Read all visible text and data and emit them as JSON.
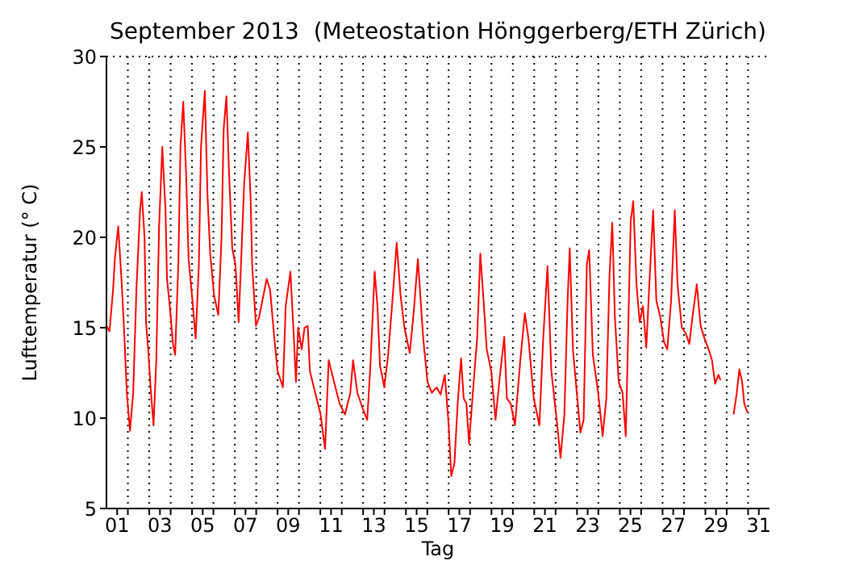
{
  "chart_data": {
    "type": "line",
    "title": "September 2013  (Meteostation Hönggerberg/ETH Zürich)",
    "xlabel": "Tag",
    "ylabel": "Lufttemperatur (° C)",
    "xlim": [
      1,
      32
    ],
    "ylim": [
      5,
      30
    ],
    "yticks": [
      5,
      10,
      15,
      20,
      25,
      30
    ],
    "xticks": [
      {
        "value": 1.5,
        "label": "01"
      },
      {
        "value": 2,
        "label": null
      },
      {
        "value": 3,
        "label": null
      },
      {
        "value": 3.5,
        "label": "03"
      },
      {
        "value": 4,
        "label": null
      },
      {
        "value": 5,
        "label": null
      },
      {
        "value": 5.5,
        "label": "05"
      },
      {
        "value": 6,
        "label": null
      },
      {
        "value": 7,
        "label": null
      },
      {
        "value": 7.5,
        "label": "07"
      },
      {
        "value": 8,
        "label": null
      },
      {
        "value": 9,
        "label": null
      },
      {
        "value": 9.5,
        "label": "09"
      },
      {
        "value": 10,
        "label": null
      },
      {
        "value": 11,
        "label": null
      },
      {
        "value": 11.5,
        "label": "11"
      },
      {
        "value": 12,
        "label": null
      },
      {
        "value": 13,
        "label": null
      },
      {
        "value": 13.5,
        "label": "13"
      },
      {
        "value": 14,
        "label": null
      },
      {
        "value": 15,
        "label": null
      },
      {
        "value": 15.5,
        "label": "15"
      },
      {
        "value": 16,
        "label": null
      },
      {
        "value": 17,
        "label": null
      },
      {
        "value": 17.5,
        "label": "17"
      },
      {
        "value": 18,
        "label": null
      },
      {
        "value": 19,
        "label": null
      },
      {
        "value": 19.5,
        "label": "19"
      },
      {
        "value": 20,
        "label": null
      },
      {
        "value": 21,
        "label": null
      },
      {
        "value": 21.5,
        "label": "21"
      },
      {
        "value": 22,
        "label": null
      },
      {
        "value": 23,
        "label": null
      },
      {
        "value": 23.5,
        "label": "23"
      },
      {
        "value": 24,
        "label": null
      },
      {
        "value": 25,
        "label": null
      },
      {
        "value": 25.5,
        "label": "25"
      },
      {
        "value": 26,
        "label": null
      },
      {
        "value": 27,
        "label": null
      },
      {
        "value": 27.5,
        "label": "27"
      },
      {
        "value": 28,
        "label": null
      },
      {
        "value": 29,
        "label": null
      },
      {
        "value": 29.5,
        "label": "29"
      },
      {
        "value": 30,
        "label": null
      },
      {
        "value": 31,
        "label": null
      },
      {
        "value": 31.5,
        "label": "31"
      }
    ],
    "grid": true,
    "series": [
      {
        "color": "#ff0000",
        "x": [
          1.0,
          1.14,
          1.31,
          1.39,
          1.55,
          1.7,
          1.82,
          1.95,
          2.1,
          2.25,
          2.4,
          2.57,
          2.65,
          2.78,
          2.85,
          2.95,
          3.08,
          3.2,
          3.33,
          3.46,
          3.61,
          3.76,
          3.83,
          3.96,
          4.11,
          4.21,
          4.36,
          4.46,
          4.59,
          4.72,
          4.84,
          5.02,
          5.17,
          5.32,
          5.42,
          5.6,
          5.72,
          5.85,
          6.03,
          6.23,
          6.38,
          6.48,
          6.61,
          6.73,
          6.88,
          7.03,
          7.18,
          7.31,
          7.44,
          7.61,
          7.74,
          7.81,
          7.99,
          8.14,
          8.29,
          8.49,
          8.65,
          8.85,
          9.0,
          9.25,
          9.38,
          9.6,
          9.75,
          9.86,
          9.96,
          10.13,
          10.26,
          10.41,
          10.51,
          10.76,
          11.01,
          11.22,
          11.39,
          11.64,
          11.9,
          12.15,
          12.4,
          12.53,
          12.73,
          12.99,
          13.19,
          13.34,
          13.54,
          13.67,
          13.79,
          13.99,
          14.17,
          14.37,
          14.57,
          14.75,
          14.93,
          15.18,
          15.36,
          15.56,
          15.81,
          16.01,
          16.21,
          16.44,
          16.62,
          16.82,
          17.0,
          17.12,
          17.27,
          17.42,
          17.58,
          17.7,
          17.83,
          17.95,
          18.13,
          18.33,
          18.48,
          18.63,
          18.78,
          18.99,
          19.19,
          19.39,
          19.6,
          19.72,
          19.9,
          20.1,
          20.35,
          20.56,
          20.73,
          20.98,
          21.24,
          21.42,
          21.62,
          21.8,
          22.05,
          22.23,
          22.41,
          22.56,
          22.66,
          22.81,
          22.99,
          23.16,
          23.31,
          23.46,
          23.57,
          23.74,
          23.99,
          24.2,
          24.37,
          24.52,
          24.65,
          24.77,
          24.95,
          25.13,
          25.28,
          25.38,
          25.51,
          25.63,
          25.78,
          25.93,
          26.08,
          26.24,
          26.39,
          26.56,
          26.71,
          26.89,
          27.07,
          27.22,
          27.4,
          27.57,
          27.7,
          27.9,
          28.08,
          28.25,
          28.4,
          28.6,
          28.78,
          28.96,
          29.16,
          29.31,
          29.46,
          29.61,
          29.71,
          30.0,
          30.32,
          30.47,
          30.59,
          30.72,
          30.82,
          30.97
        ],
        "values": [
          15.1,
          14.8,
          17.1,
          18.8,
          20.6,
          17.7,
          15.0,
          11.4,
          9.3,
          11.4,
          17.1,
          21.5,
          22.5,
          20.0,
          15.3,
          13.8,
          11.4,
          9.6,
          13.2,
          20.6,
          25.0,
          21.5,
          17.7,
          16.2,
          14.1,
          13.5,
          18.5,
          25.0,
          27.5,
          23.6,
          18.8,
          16.5,
          14.4,
          18.5,
          25.0,
          28.1,
          22.4,
          19.1,
          16.8,
          15.7,
          20.0,
          26.0,
          27.8,
          23.6,
          19.4,
          18.5,
          15.3,
          19.1,
          23.0,
          25.8,
          22.1,
          18.5,
          15.1,
          15.6,
          16.5,
          17.7,
          17.1,
          14.4,
          12.6,
          11.7,
          16.2,
          18.1,
          14.7,
          12.0,
          15.0,
          13.8,
          15.0,
          15.1,
          12.6,
          11.4,
          10.2,
          8.3,
          13.2,
          12.0,
          10.8,
          10.2,
          11.4,
          13.2,
          11.4,
          10.5,
          9.9,
          12.9,
          18.1,
          16.2,
          12.9,
          11.7,
          13.5,
          16.5,
          19.7,
          16.8,
          15.0,
          13.6,
          15.8,
          18.8,
          14.4,
          12.0,
          11.4,
          11.7,
          11.3,
          12.4,
          9.6,
          6.8,
          7.5,
          10.8,
          13.3,
          11.1,
          10.8,
          8.6,
          11.4,
          14.4,
          19.1,
          16.5,
          13.8,
          12.6,
          9.9,
          12.3,
          14.5,
          11.1,
          10.8,
          9.6,
          13.2,
          15.8,
          14.4,
          11.1,
          9.6,
          14.4,
          18.4,
          12.6,
          9.9,
          7.8,
          10.2,
          16.5,
          19.4,
          13.8,
          11.4,
          9.2,
          9.9,
          18.5,
          19.3,
          13.5,
          11.4,
          9.0,
          11.1,
          17.9,
          20.8,
          15.6,
          12.0,
          11.4,
          9.0,
          14.1,
          20.9,
          22.0,
          17.4,
          15.3,
          16.2,
          13.9,
          17.6,
          21.5,
          16.5,
          15.6,
          14.2,
          13.8,
          16.5,
          21.5,
          17.4,
          15.0,
          14.7,
          14.1,
          15.6,
          17.4,
          15.1,
          14.4,
          13.8,
          13.2,
          11.9,
          12.4,
          12.1,
          null,
          10.2,
          11.4,
          12.7,
          12.0,
          10.8,
          10.3
        ]
      }
    ]
  }
}
